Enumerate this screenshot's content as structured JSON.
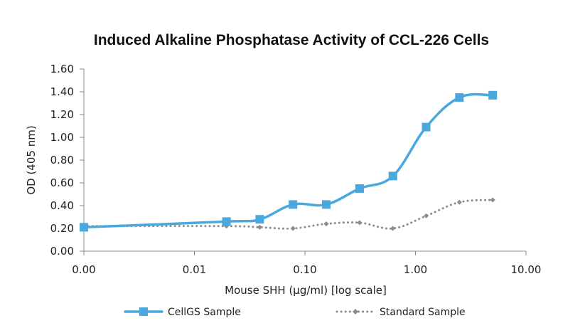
{
  "chart_data": {
    "type": "line",
    "title": "Induced Alkaline Phosphatase Activity of CCL-226 Cells",
    "xlabel": "Mouse SHH (µg/ml) [log scale]",
    "ylabel": "OD (405 nm)",
    "x_scale": "log",
    "x_tick_labels": [
      "0.00",
      "0.01",
      "0.10",
      "1.00",
      "10.00"
    ],
    "y_tick_labels": [
      "0.00",
      "0.20",
      "0.40",
      "0.60",
      "0.80",
      "1.00",
      "1.20",
      "1.40",
      "1.60"
    ],
    "ylim": [
      0,
      1.6
    ],
    "grid": false,
    "legend_position": "bottom",
    "series": [
      {
        "name": "CellGS Sample",
        "color": "#4aa8dc",
        "marker": "square",
        "line_style": "solid",
        "x": [
          0.001,
          0.0195,
          0.039,
          0.078,
          0.156,
          0.3125,
          0.625,
          1.25,
          2.5,
          5
        ],
        "y": [
          0.21,
          0.26,
          0.28,
          0.41,
          0.41,
          0.55,
          0.66,
          1.09,
          1.35,
          1.37
        ]
      },
      {
        "name": "Standard Sample",
        "color": "#8c8c8c",
        "marker": "diamond",
        "line_style": "dotted",
        "x": [
          0.001,
          0.0195,
          0.039,
          0.078,
          0.156,
          0.3125,
          0.625,
          1.25,
          2.5,
          5
        ],
        "y": [
          0.22,
          0.22,
          0.21,
          0.2,
          0.24,
          0.25,
          0.2,
          0.31,
          0.43,
          0.45
        ]
      }
    ]
  }
}
